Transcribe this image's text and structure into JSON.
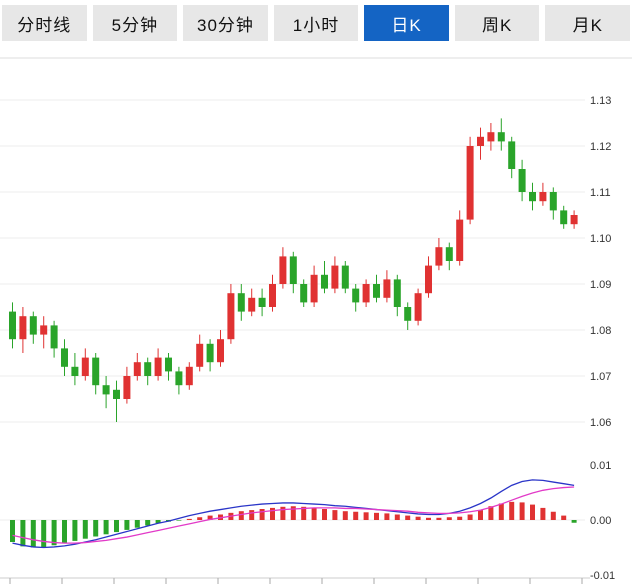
{
  "tabs": {
    "items": [
      {
        "label": "分时线",
        "active": false
      },
      {
        "label": "5分钟",
        "active": false
      },
      {
        "label": "30分钟",
        "active": false
      },
      {
        "label": "1小时",
        "active": false
      },
      {
        "label": "日K",
        "active": true
      },
      {
        "label": "周K",
        "active": false
      },
      {
        "label": "月K",
        "active": false
      }
    ],
    "active_bg": "#1464c4",
    "inactive_bg": "#e7e7e7"
  },
  "chart_data": {
    "type": "candlestick",
    "title": "",
    "xlabel": "",
    "ylabel": "",
    "legend": "none",
    "grid": true,
    "indicator": "MACD",
    "up_color": "#e03232",
    "down_color": "#2aa42a",
    "price_axis_ticks": [
      "1.13",
      "1.12",
      "1.11",
      "1.10",
      "1.09",
      "1.08",
      "1.07",
      "1.06"
    ],
    "price_axis_values": [
      1.13,
      1.12,
      1.11,
      1.1,
      1.09,
      1.08,
      1.07,
      1.06
    ],
    "price_ylim": [
      1.055,
      1.135
    ],
    "candles": [
      [
        1.084,
        1.086,
        1.076,
        1.078
      ],
      [
        1.078,
        1.085,
        1.075,
        1.083
      ],
      [
        1.083,
        1.084,
        1.077,
        1.079
      ],
      [
        1.079,
        1.083,
        1.076,
        1.081
      ],
      [
        1.081,
        1.082,
        1.074,
        1.076
      ],
      [
        1.076,
        1.078,
        1.07,
        1.072
      ],
      [
        1.072,
        1.075,
        1.068,
        1.07
      ],
      [
        1.07,
        1.076,
        1.069,
        1.074
      ],
      [
        1.074,
        1.075,
        1.066,
        1.068
      ],
      [
        1.068,
        1.07,
        1.063,
        1.066
      ],
      [
        1.067,
        1.069,
        1.06,
        1.065
      ],
      [
        1.065,
        1.072,
        1.064,
        1.07
      ],
      [
        1.07,
        1.075,
        1.069,
        1.073
      ],
      [
        1.073,
        1.074,
        1.068,
        1.07
      ],
      [
        1.07,
        1.076,
        1.069,
        1.074
      ],
      [
        1.074,
        1.075,
        1.069,
        1.071
      ],
      [
        1.071,
        1.072,
        1.066,
        1.068
      ],
      [
        1.068,
        1.073,
        1.067,
        1.072
      ],
      [
        1.072,
        1.079,
        1.071,
        1.077
      ],
      [
        1.077,
        1.078,
        1.071,
        1.073
      ],
      [
        1.073,
        1.08,
        1.072,
        1.078
      ],
      [
        1.078,
        1.09,
        1.077,
        1.088
      ],
      [
        1.088,
        1.09,
        1.082,
        1.084
      ],
      [
        1.084,
        1.089,
        1.083,
        1.087
      ],
      [
        1.087,
        1.089,
        1.083,
        1.085
      ],
      [
        1.085,
        1.092,
        1.084,
        1.09
      ],
      [
        1.09,
        1.098,
        1.089,
        1.096
      ],
      [
        1.096,
        1.097,
        1.088,
        1.09
      ],
      [
        1.09,
        1.091,
        1.085,
        1.086
      ],
      [
        1.086,
        1.094,
        1.085,
        1.092
      ],
      [
        1.092,
        1.095,
        1.088,
        1.089
      ],
      [
        1.089,
        1.096,
        1.088,
        1.094
      ],
      [
        1.094,
        1.095,
        1.088,
        1.089
      ],
      [
        1.089,
        1.09,
        1.084,
        1.086
      ],
      [
        1.086,
        1.091,
        1.085,
        1.09
      ],
      [
        1.09,
        1.092,
        1.086,
        1.087
      ],
      [
        1.087,
        1.093,
        1.086,
        1.091
      ],
      [
        1.091,
        1.092,
        1.083,
        1.085
      ],
      [
        1.085,
        1.086,
        1.08,
        1.082
      ],
      [
        1.082,
        1.089,
        1.081,
        1.088
      ],
      [
        1.088,
        1.096,
        1.087,
        1.094
      ],
      [
        1.094,
        1.1,
        1.093,
        1.098
      ],
      [
        1.098,
        1.099,
        1.093,
        1.095
      ],
      [
        1.095,
        1.106,
        1.094,
        1.104
      ],
      [
        1.104,
        1.122,
        1.103,
        1.12
      ],
      [
        1.12,
        1.124,
        1.117,
        1.122
      ],
      [
        1.121,
        1.125,
        1.119,
        1.123
      ],
      [
        1.123,
        1.126,
        1.119,
        1.121
      ],
      [
        1.121,
        1.122,
        1.113,
        1.115
      ],
      [
        1.115,
        1.117,
        1.108,
        1.11
      ],
      [
        1.11,
        1.112,
        1.106,
        1.108
      ],
      [
        1.108,
        1.112,
        1.107,
        1.11
      ],
      [
        1.11,
        1.111,
        1.104,
        1.106
      ],
      [
        1.106,
        1.107,
        1.102,
        1.103
      ],
      [
        1.103,
        1.106,
        1.102,
        1.105
      ]
    ],
    "macd": {
      "axis_ticks": [
        "0.01",
        "0.00",
        "-0.01"
      ],
      "axis_values": [
        0.01,
        0.0,
        -0.01
      ],
      "dif_color": "#2a35c8",
      "dea_color": "#e23ac8",
      "histogram": [
        -0.004,
        -0.0048,
        -0.005,
        -0.005,
        -0.0046,
        -0.0042,
        -0.0038,
        -0.0034,
        -0.003,
        -0.0026,
        -0.0022,
        -0.0018,
        -0.0014,
        -0.001,
        -0.0006,
        -0.0003,
        -0.0001,
        0.0002,
        0.0005,
        0.0008,
        0.001,
        0.0013,
        0.0016,
        0.0018,
        0.002,
        0.0022,
        0.0024,
        0.0025,
        0.0024,
        0.0022,
        0.002,
        0.0018,
        0.0016,
        0.0015,
        0.0014,
        0.0013,
        0.0012,
        0.001,
        0.0008,
        0.0006,
        0.0004,
        0.0004,
        0.0005,
        0.0006,
        0.001,
        0.0018,
        0.0025,
        0.003,
        0.0033,
        0.0032,
        0.0028,
        0.0022,
        0.0015,
        0.0008,
        -0.0005
      ],
      "dif": [
        -0.0042,
        -0.0046,
        -0.0049,
        -0.005,
        -0.0049,
        -0.0047,
        -0.0044,
        -0.004,
        -0.0036,
        -0.0031,
        -0.0026,
        -0.0021,
        -0.0016,
        -0.0011,
        -0.0006,
        -0.0002,
        0.0003,
        0.0008,
        0.0012,
        0.0016,
        0.0019,
        0.0022,
        0.0025,
        0.0027,
        0.0029,
        0.003,
        0.0031,
        0.0031,
        0.003,
        0.0029,
        0.0028,
        0.0026,
        0.0025,
        0.0023,
        0.0021,
        0.0019,
        0.0017,
        0.0015,
        0.0013,
        0.0011,
        0.001,
        0.001,
        0.0012,
        0.0016,
        0.0022,
        0.003,
        0.004,
        0.0052,
        0.0063,
        0.007,
        0.0073,
        0.0072,
        0.0069,
        0.0066,
        0.0063
      ],
      "dea": [
        -0.0028,
        -0.0032,
        -0.0036,
        -0.0039,
        -0.0041,
        -0.0042,
        -0.0042,
        -0.0041,
        -0.0039,
        -0.0037,
        -0.0034,
        -0.0031,
        -0.0027,
        -0.0023,
        -0.0019,
        -0.0015,
        -0.0011,
        -0.0007,
        -0.0003,
        0.0001,
        0.0004,
        0.0007,
        0.001,
        0.0013,
        0.0015,
        0.0017,
        0.0019,
        0.002,
        0.0021,
        0.0022,
        0.0022,
        0.0022,
        0.0021,
        0.0021,
        0.002,
        0.0019,
        0.0018,
        0.0017,
        0.0016,
        0.0014,
        0.0013,
        0.0012,
        0.0012,
        0.0013,
        0.0015,
        0.0018,
        0.0023,
        0.0029,
        0.0036,
        0.0043,
        0.0049,
        0.0054,
        0.0057,
        0.0059,
        0.006
      ]
    }
  }
}
